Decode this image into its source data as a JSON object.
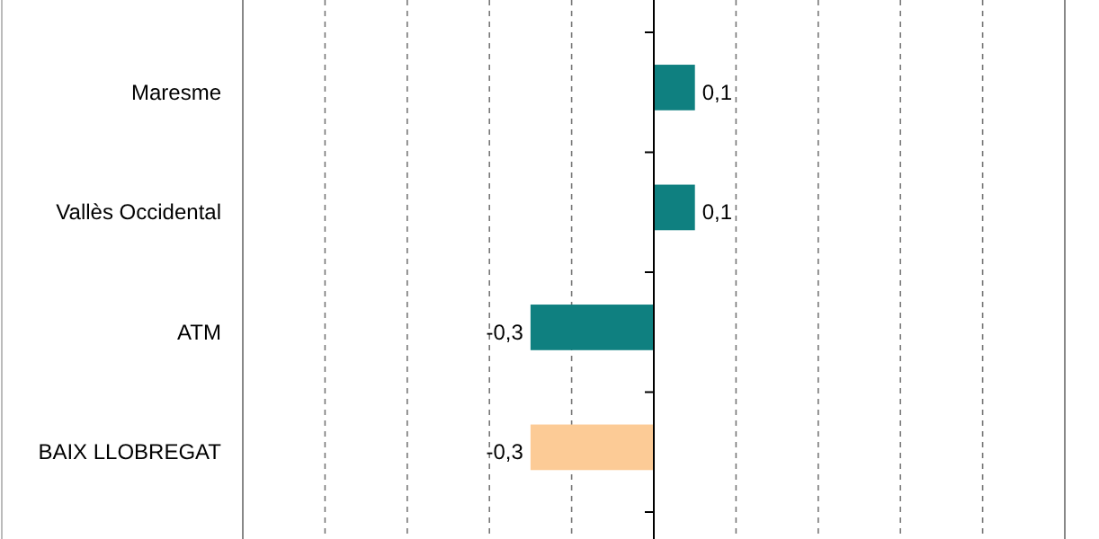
{
  "chart_data": {
    "type": "bar",
    "orientation": "horizontal",
    "categories": [
      "Maresme",
      "Vallès Occidental",
      "ATM",
      "BAIX LLOBREGAT"
    ],
    "values": [
      0.1,
      0.1,
      -0.3,
      -0.3
    ],
    "colors": [
      "#0f8080",
      "#0f8080",
      "#0f8080",
      "#fccb96"
    ],
    "value_labels": [
      "0,1",
      "0,1",
      "-0,3",
      "-0,3"
    ],
    "xlim": [
      -1,
      1
    ],
    "xticks": [
      {
        "value": -0.8,
        "label": null
      },
      {
        "value": -0.6,
        "label": null
      },
      {
        "value": -0.4,
        "label": null
      },
      {
        "value": -0.2,
        "label": null
      },
      {
        "value": 0,
        "label": null
      },
      {
        "value": 0.2,
        "label": null
      },
      {
        "value": 0.4,
        "label": null
      },
      {
        "value": 0.6,
        "label": null
      },
      {
        "value": 0.8,
        "label": null
      }
    ],
    "grid": "x",
    "tick_labels": "y"
  }
}
